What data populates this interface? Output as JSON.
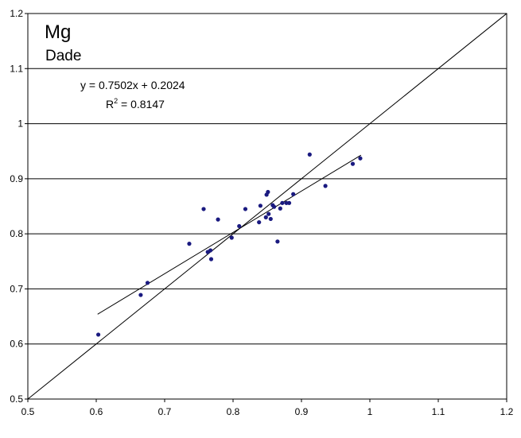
{
  "chart_data": {
    "type": "scatter",
    "title": "Mg",
    "subtitle": "Dade",
    "xlabel": "",
    "ylabel": "",
    "xlim": [
      0.5,
      1.2
    ],
    "ylim": [
      0.5,
      1.2
    ],
    "x_ticks": [
      "0.5",
      "0.6",
      "0.7",
      "0.8",
      "0.9",
      "1",
      "1.1",
      "1.2"
    ],
    "y_ticks": [
      "0.5",
      "0.6",
      "0.7",
      "0.8",
      "0.9",
      "1",
      "1.1",
      "1.2"
    ],
    "grid": "horizontal",
    "colors": {
      "points": "#1a1a80",
      "lines": "#000000",
      "grid": "#000000"
    },
    "equation": "y = 0.7502x + 0.2024",
    "r2_prefix": "R",
    "r2_exp": "2",
    "r2_value": " = 0.8147",
    "trendline": {
      "slope": 0.7502,
      "intercept": 0.2024,
      "x_range": [
        0.602,
        0.987
      ]
    },
    "identity_line": {
      "from": [
        0.5,
        0.5
      ],
      "to": [
        1.2,
        1.2
      ]
    },
    "series": [
      {
        "points": [
          [
            0.603,
            0.617
          ],
          [
            0.665,
            0.689
          ],
          [
            0.675,
            0.711
          ],
          [
            0.736,
            0.782
          ],
          [
            0.757,
            0.845
          ],
          [
            0.763,
            0.767
          ],
          [
            0.767,
            0.77
          ],
          [
            0.768,
            0.754
          ],
          [
            0.778,
            0.826
          ],
          [
            0.798,
            0.793
          ],
          [
            0.809,
            0.814
          ],
          [
            0.818,
            0.845
          ],
          [
            0.838,
            0.821
          ],
          [
            0.84,
            0.851
          ],
          [
            0.848,
            0.83
          ],
          [
            0.849,
            0.871
          ],
          [
            0.851,
            0.876
          ],
          [
            0.852,
            0.836
          ],
          [
            0.855,
            0.827
          ],
          [
            0.858,
            0.852
          ],
          [
            0.86,
            0.849
          ],
          [
            0.865,
            0.786
          ],
          [
            0.869,
            0.846
          ],
          [
            0.872,
            0.856
          ],
          [
            0.878,
            0.856
          ],
          [
            0.882,
            0.856
          ],
          [
            0.888,
            0.872
          ],
          [
            0.912,
            0.944
          ],
          [
            0.935,
            0.887
          ],
          [
            0.975,
            0.927
          ],
          [
            0.986,
            0.937
          ]
        ]
      }
    ]
  }
}
